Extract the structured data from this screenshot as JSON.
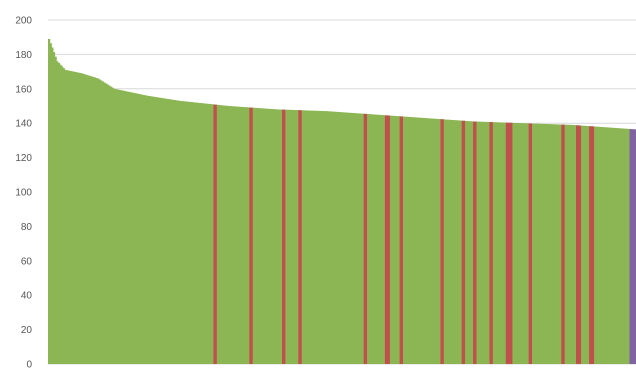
{
  "chart_data": {
    "type": "bar",
    "title": "",
    "xlabel": "",
    "ylabel": "",
    "ylim": [
      0,
      200
    ],
    "yticks": [
      0,
      20,
      40,
      60,
      80,
      100,
      120,
      140,
      160,
      180,
      200
    ],
    "grid": true,
    "legend": "none",
    "sorted": "descending",
    "bar_count": 360,
    "profile": [
      [
        0,
        189
      ],
      [
        2,
        184
      ],
      [
        5,
        176
      ],
      [
        10,
        171
      ],
      [
        20,
        169
      ],
      [
        30,
        166
      ],
      [
        40,
        160
      ],
      [
        60,
        156
      ],
      [
        80,
        153
      ],
      [
        110,
        150
      ],
      [
        140,
        148
      ],
      [
        170,
        147
      ],
      [
        200,
        145
      ],
      [
        230,
        143
      ],
      [
        260,
        141
      ],
      [
        290,
        140
      ],
      [
        320,
        139
      ],
      [
        350,
        137
      ],
      [
        380,
        135
      ],
      [
        410,
        134
      ],
      [
        440,
        133
      ],
      [
        470,
        131
      ],
      [
        500,
        130
      ],
      [
        530,
        129
      ],
      [
        560,
        128
      ],
      [
        572,
        126
      ],
      [
        578,
        123
      ],
      [
        583,
        121
      ],
      [
        586,
        119
      ],
      [
        589,
        117
      ]
    ],
    "highlight_x": [
      168,
      203,
      237,
      253,
      318,
      339,
      341,
      355,
      396,
      416,
      428,
      444,
      461,
      465,
      484,
      516,
      531,
      533,
      545,
      547
    ],
    "colors": {
      "base": "#8cb654",
      "highlight": "#c0504d",
      "end": "#8064a2"
    }
  }
}
